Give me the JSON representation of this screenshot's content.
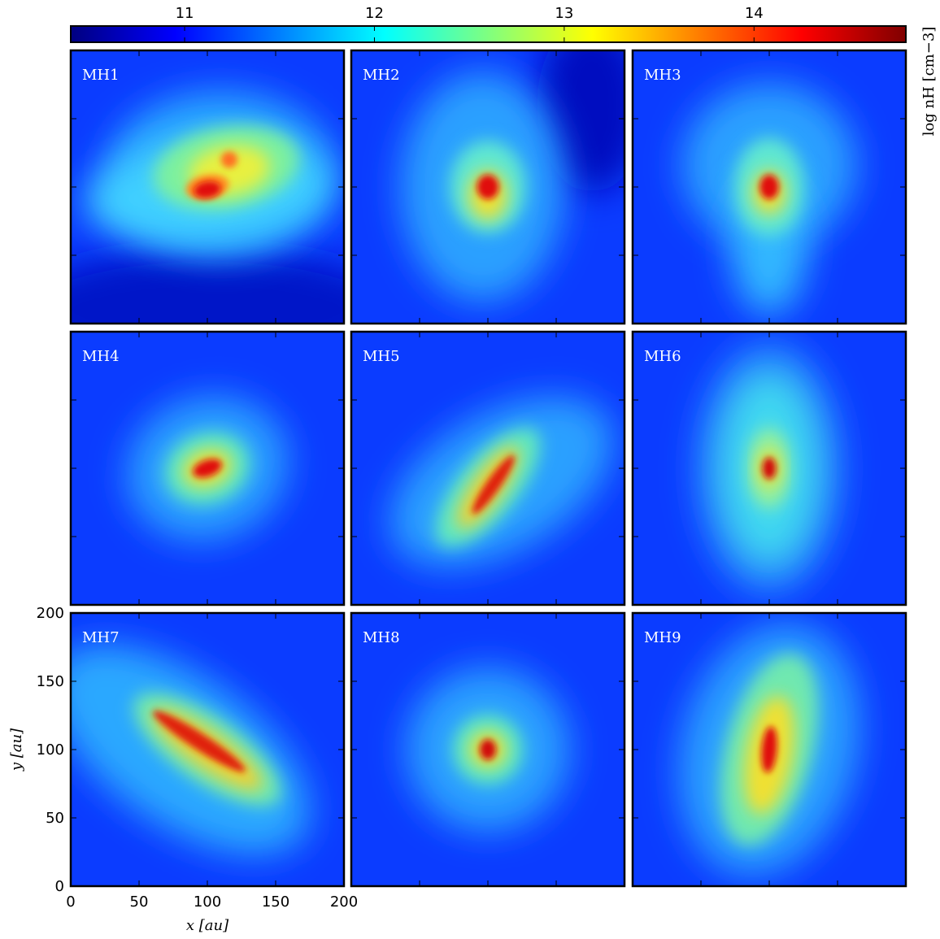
{
  "chart_data": {
    "type": "heatmap-grid",
    "colorbar": {
      "label": "log nH [cm−3]",
      "lim": [
        10.4,
        14.8
      ],
      "ticks": [
        11,
        12,
        13,
        14
      ]
    },
    "panels": [
      {
        "label": "MH1"
      },
      {
        "label": "MH2"
      },
      {
        "label": "MH3"
      },
      {
        "label": "MH4"
      },
      {
        "label": "MH5"
      },
      {
        "label": "MH6"
      },
      {
        "label": "MH7"
      },
      {
        "label": "MH8"
      },
      {
        "label": "MH9"
      }
    ],
    "xlabel": "x [au]",
    "ylabel": "y [au]",
    "xlim": [
      0,
      200
    ],
    "ylim": [
      0,
      200
    ],
    "xticks": [
      0,
      50,
      100,
      150,
      200
    ],
    "yticks": [
      0,
      50,
      100,
      150,
      200
    ]
  }
}
